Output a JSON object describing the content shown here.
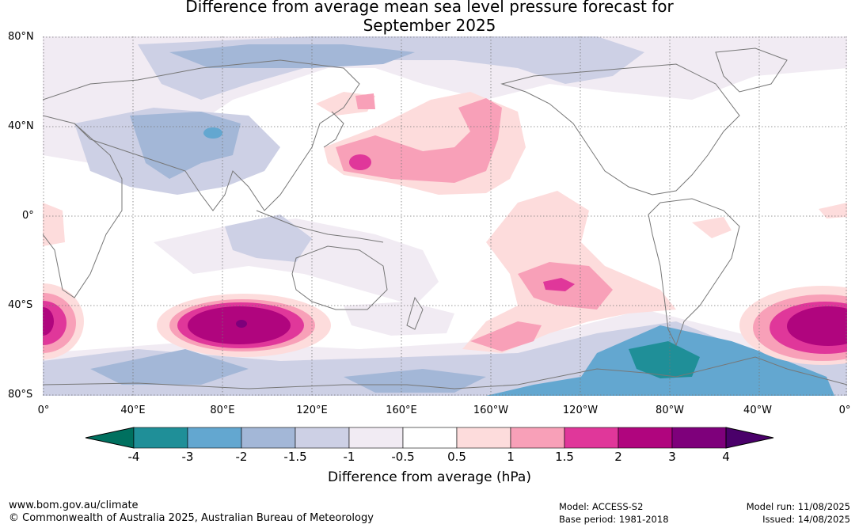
{
  "title": {
    "line1": "Difference from average mean sea level pressure forecast for",
    "line2": "September 2025"
  },
  "lat_labels": [
    "80°N",
    "40°N",
    "0°",
    "40°S",
    "80°S"
  ],
  "lon_labels": [
    "0°",
    "40°E",
    "80°E",
    "120°E",
    "160°E",
    "160°W",
    "120°W",
    "80°W",
    "40°W",
    "0°"
  ],
  "legend": {
    "title": "Difference from average (hPa)",
    "ticks": [
      "-4",
      "-3",
      "-2",
      "-1.5",
      "-1",
      "-0.5",
      "0.5",
      "1",
      "1.5",
      "2",
      "3",
      "4"
    ],
    "colors": {
      "below_min": "#00705f",
      "lt_m3": "#1f8f98",
      "lt_m2": "#63a7d0",
      "lt_m15": "#a3b7d7",
      "lt_m1": "#cdd0e5",
      "lt_m05": "#f1ebf3",
      "neutral": "#ffffff",
      "gt_05": "#fddcdc",
      "gt_1": "#f8a0b8",
      "gt_15": "#e0379a",
      "gt_2": "#b0057e",
      "gt_3": "#7e007b",
      "above_max": "#4a006a"
    }
  },
  "footer": {
    "url": "www.bom.gov.au/climate",
    "copyright": "© Commonwealth of Australia 2025, Australian Bureau of Meteorology",
    "model": "Model: ACCESS-S2",
    "base_period": "Base period: 1981-2018",
    "model_run": "Model run: 11/08/2025",
    "issued": "Issued: 14/08/2025"
  }
}
